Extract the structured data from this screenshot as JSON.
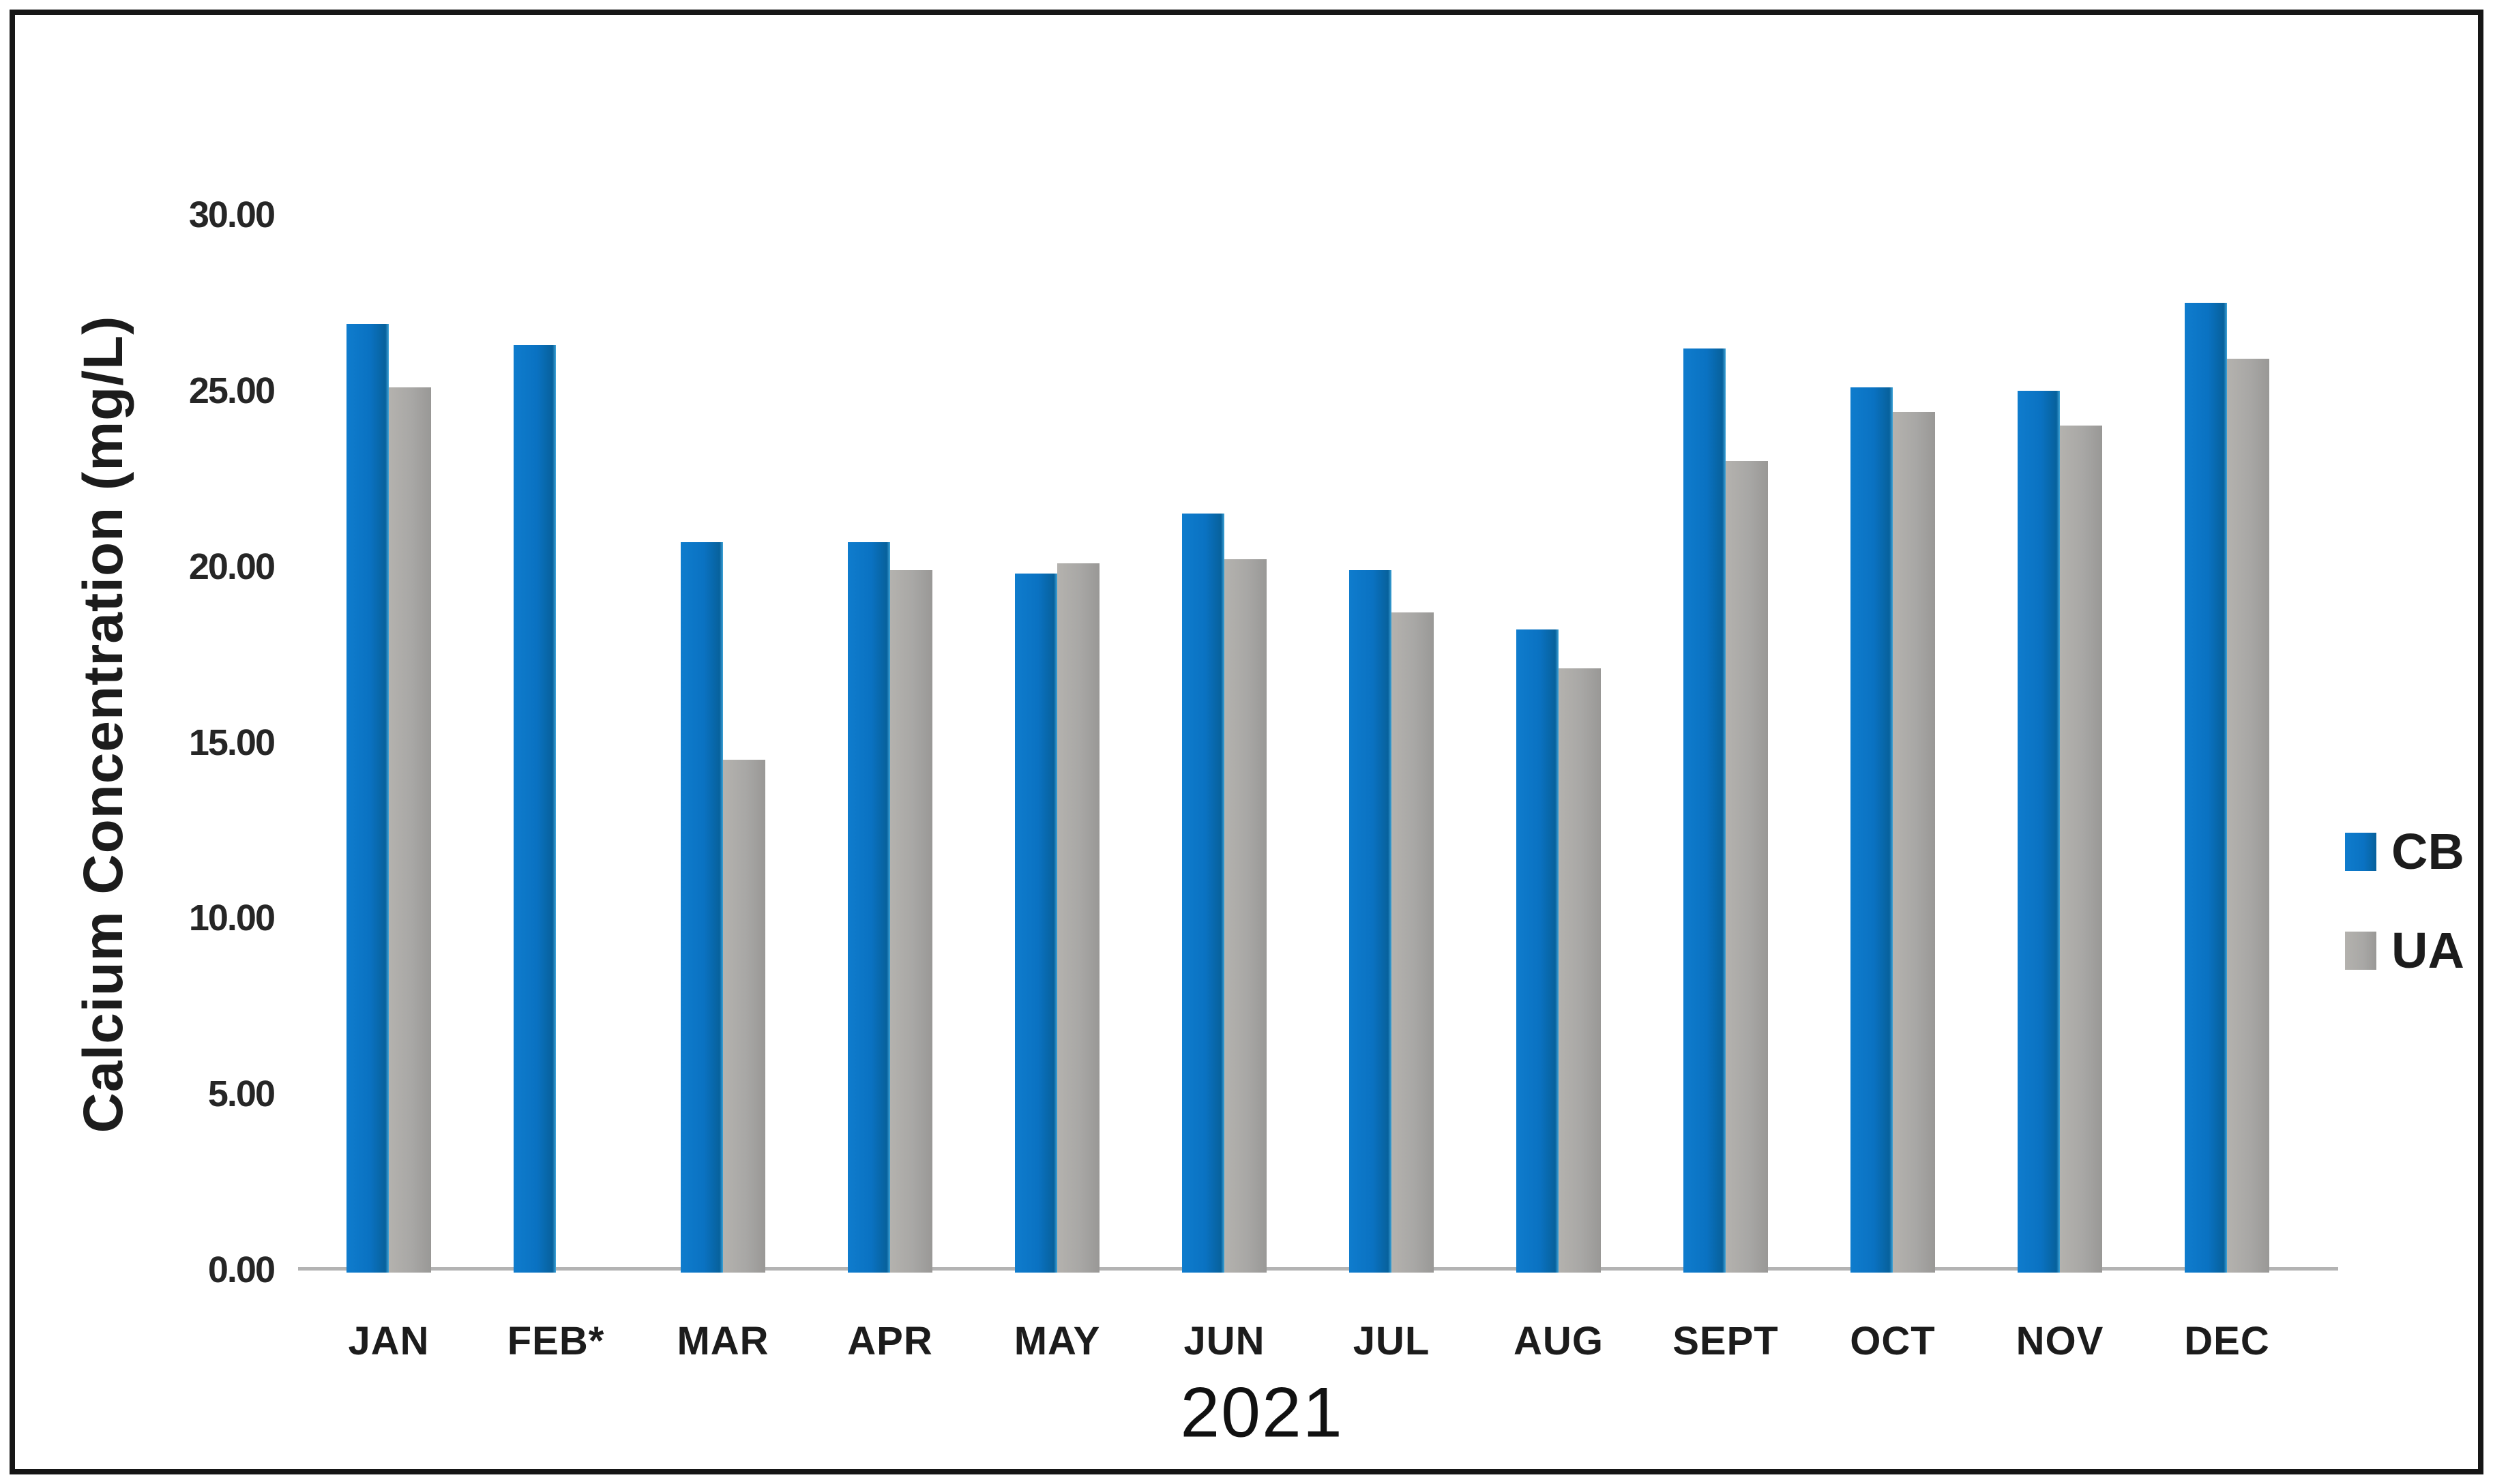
{
  "figure": {
    "background": "#ffffff",
    "frame_color": "#161616",
    "axis_line_color": "#b3b3b3",
    "text_color": "#1f1f1f"
  },
  "chart_data": {
    "type": "bar",
    "title": "",
    "xlabel": "2021",
    "ylabel": "Calcium Concentration (mg/L)",
    "categories": [
      "JAN",
      "FEB*",
      "MAR",
      "APR",
      "MAY",
      "JUN",
      "JUL",
      "AUG",
      "SEPT",
      "OCT",
      "NOV",
      "DEC"
    ],
    "series": [
      {
        "name": "CB",
        "color": "#0a72c2",
        "values": [
          26.9,
          26.3,
          20.7,
          20.7,
          19.8,
          21.5,
          19.9,
          18.2,
          26.2,
          25.1,
          25.0,
          27.5
        ]
      },
      {
        "name": "UA",
        "color": "#a8a7a5",
        "values": [
          25.1,
          null,
          14.5,
          19.9,
          20.1,
          20.2,
          18.7,
          17.1,
          23.0,
          24.4,
          24.0,
          25.9
        ]
      }
    ],
    "ylim": [
      0,
      30
    ],
    "ytick_step": 5,
    "ytick_labels": [
      "0.00",
      "5.00",
      "10.00",
      "15.00",
      "20.00",
      "25.00",
      "30.00"
    ],
    "grid": false,
    "legend_position": "right-middle"
  }
}
